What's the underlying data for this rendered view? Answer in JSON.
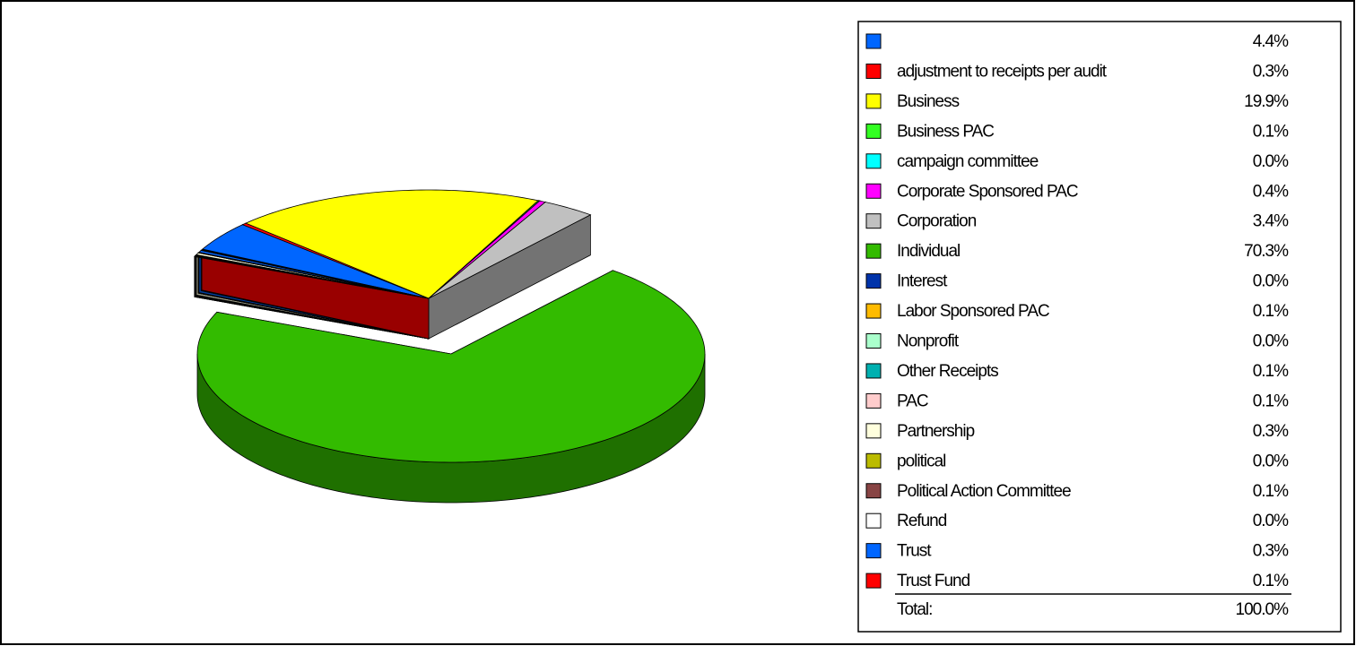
{
  "chart_data": {
    "type": "pie3d",
    "categories": [
      null,
      "adjustment to receipts per audit",
      "Business",
      "Business PAC",
      "campaign committee",
      "Corporate Sponsored PAC",
      "Corporation",
      "Individual",
      "Interest",
      "Labor Sponsored PAC",
      "Nonprofit",
      "Other Receipts",
      "PAC",
      "Partnership",
      "political",
      "Political Action Committee",
      "Refund",
      "Trust",
      "Trust Fund"
    ],
    "values": [
      4.4,
      0.3,
      19.9,
      0.1,
      0.0,
      0.4,
      3.4,
      70.3,
      0.0,
      0.1,
      0.0,
      0.1,
      0.1,
      0.3,
      0.0,
      0.1,
      0.0,
      0.3,
      0.1
    ],
    "value_labels": [
      "4.4%",
      "0.3%",
      "19.9%",
      "0.1%",
      "0.0%",
      "0.4%",
      "3.4%",
      "70.3%",
      "0.0%",
      "0.1%",
      "0.0%",
      "0.1%",
      "0.1%",
      "0.3%",
      "0.0%",
      "0.1%",
      "0.0%",
      "0.3%",
      "0.1%"
    ],
    "colors": [
      "#0066ff",
      "#ff0000",
      "#ffff00",
      "#33ff22",
      "#00ffff",
      "#ff00ff",
      "#c0c0c0",
      "#33bb00",
      "#0033aa",
      "#ffbb00",
      "#aaffcc",
      "#00b0b0",
      "#ffcccc",
      "#ffffdd",
      "#bbbb00",
      "#884444",
      "#ffffff",
      "#0066ff",
      "#ff0000"
    ],
    "total_label": "Total:",
    "total": 100.0,
    "total_value_label": "100.0%"
  }
}
